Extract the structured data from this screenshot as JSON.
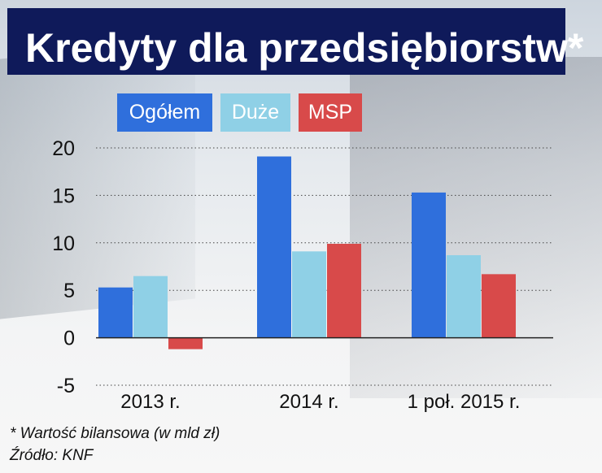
{
  "title": "Kredyty dla przedsiębiorstw*",
  "legend": [
    {
      "label": "Ogółem",
      "color": "#2f6fdc"
    },
    {
      "label": "Duże",
      "color": "#8fd0e6"
    },
    {
      "label": "MSP",
      "color": "#d84a4a"
    }
  ],
  "chart_data": {
    "type": "bar",
    "categories": [
      "2013 r.",
      "2014 r.",
      "1 poł. 2015 r."
    ],
    "series": [
      {
        "name": "Ogółem",
        "values": [
          5.3,
          19.1,
          15.3
        ],
        "color": "#2f6fdc"
      },
      {
        "name": "Duże",
        "values": [
          6.5,
          9.1,
          8.7
        ],
        "color": "#8fd0e6"
      },
      {
        "name": "MSP",
        "values": [
          -1.2,
          9.9,
          6.7
        ],
        "color": "#d84a4a"
      }
    ],
    "yticks": [
      20,
      15,
      10,
      5,
      0,
      -5
    ],
    "ylim": [
      -5,
      20
    ],
    "title": "Kredyty dla przedsiębiorstw*",
    "grid": true
  },
  "footnotes": {
    "note": "* Wartość bilansowa (w mld zł)",
    "source": "Źródło: KNF"
  }
}
